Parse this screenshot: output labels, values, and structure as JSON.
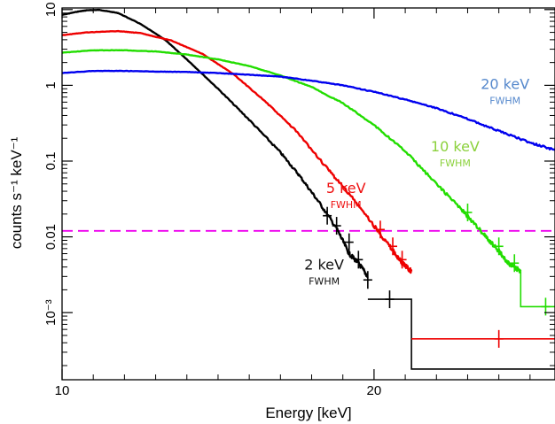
{
  "chart_data": {
    "type": "line",
    "title": "",
    "xlabel": "Energy [keV]",
    "ylabel": "counts s⁻¹ keV⁻¹",
    "xlim": [
      10,
      25.8
    ],
    "ylim": [
      0.00013,
      10.5
    ],
    "yscale": "log",
    "grid": false,
    "x_ticks": [
      {
        "value": 10,
        "label": "10"
      },
      {
        "value": 20,
        "label": "20"
      }
    ],
    "y_ticks": [
      {
        "value": 10,
        "label": "10"
      },
      {
        "value": 1,
        "label": "1"
      },
      {
        "value": 0.1,
        "label": "0.1"
      },
      {
        "value": 0.01,
        "label": "0.01"
      },
      {
        "value": 0.001,
        "label": "10⁻³"
      }
    ],
    "threshold_line": {
      "y": 0.012,
      "color": "#ee00ee",
      "style": "dashed"
    },
    "series": [
      {
        "color": "#000000",
        "x": [
          10.0,
          10.5,
          10.8,
          11.2,
          11.8,
          12.5,
          13.3,
          14.0,
          15.0,
          16.0,
          17.0,
          17.6,
          18.2,
          18.8,
          19.2,
          19.5,
          19.8
        ],
        "y": [
          8.5,
          9.4,
          9.8,
          9.9,
          9.0,
          6.5,
          4.0,
          2.2,
          0.9,
          0.35,
          0.13,
          0.065,
          0.03,
          0.013,
          0.006,
          0.0045,
          0.003
        ],
        "errorbars": [
          {
            "x": 18.5,
            "y": 0.019
          },
          {
            "x": 18.8,
            "y": 0.014
          },
          {
            "x": 19.2,
            "y": 0.0085
          },
          {
            "x": 19.5,
            "y": 0.005
          },
          {
            "x": 19.8,
            "y": 0.0027
          },
          {
            "x": 20.5,
            "y": 0.0015
          }
        ],
        "steps": [
          [
            19.8,
            0.0015
          ],
          [
            21.2,
            0.0015
          ],
          [
            21.2,
            0.00018
          ],
          [
            25.8,
            0.00018
          ]
        ]
      },
      {
        "color": "#ee0000",
        "x": [
          10.0,
          10.8,
          11.8,
          12.5,
          13.5,
          14.5,
          15.5,
          16.5,
          17.5,
          18.5,
          19.2,
          20.0,
          20.5,
          20.9,
          21.2
        ],
        "y": [
          4.6,
          5.0,
          5.2,
          4.9,
          3.9,
          2.6,
          1.4,
          0.62,
          0.25,
          0.08,
          0.037,
          0.014,
          0.0075,
          0.0045,
          0.0035
        ],
        "errorbars": [
          {
            "x": 20.2,
            "y": 0.0125
          },
          {
            "x": 20.6,
            "y": 0.0075
          },
          {
            "x": 20.9,
            "y": 0.005
          },
          {
            "x": 24.0,
            "y": 0.00045
          }
        ],
        "steps": [
          [
            21.2,
            0.00045
          ],
          [
            25.8,
            0.00045
          ]
        ]
      },
      {
        "color": "#22dd00",
        "x": [
          10.0,
          11.0,
          12.0,
          13.0,
          14.0,
          15.0,
          16.0,
          17.0,
          18.0,
          19.0,
          20.0,
          21.0,
          22.0,
          22.8,
          23.5,
          24.0,
          24.3,
          24.7
        ],
        "y": [
          2.7,
          2.9,
          2.9,
          2.8,
          2.55,
          2.2,
          1.8,
          1.35,
          0.95,
          0.58,
          0.3,
          0.135,
          0.05,
          0.023,
          0.011,
          0.0065,
          0.0045,
          0.0035
        ],
        "errorbars": [
          {
            "x": 23.0,
            "y": 0.021
          },
          {
            "x": 24.0,
            "y": 0.0075
          },
          {
            "x": 24.5,
            "y": 0.0045
          },
          {
            "x": 25.5,
            "y": 0.0012
          }
        ],
        "steps": [
          [
            24.7,
            0.0035
          ],
          [
            24.7,
            0.0012
          ],
          [
            25.8,
            0.0012
          ]
        ]
      },
      {
        "color": "#0000ee",
        "x": [
          10.0,
          11.0,
          12.0,
          13.0,
          14.0,
          15.0,
          16.0,
          17.0,
          18.0,
          19.0,
          20.0,
          21.0,
          22.0,
          23.0,
          24.0,
          25.0,
          25.8
        ],
        "y": [
          1.45,
          1.55,
          1.55,
          1.52,
          1.5,
          1.45,
          1.38,
          1.3,
          1.15,
          1.0,
          0.82,
          0.65,
          0.5,
          0.36,
          0.25,
          0.175,
          0.14
        ],
        "errorbars": [],
        "steps": []
      }
    ],
    "annotations": [
      {
        "text": "20 keV",
        "sub": "FWHM",
        "color": "#5588cc",
        "x": 24.2,
        "y": 0.9
      },
      {
        "text": "10 keV",
        "sub": "FWHM",
        "color": "#8bd13c",
        "x": 22.6,
        "y": 0.135
      },
      {
        "text": "5 keV",
        "sub": "FWHM",
        "color": "#ee1111",
        "x": 19.1,
        "y": 0.038
      },
      {
        "text": "2 keV",
        "sub": "FWHM",
        "color": "#111111",
        "x": 18.4,
        "y": 0.0037
      }
    ]
  }
}
